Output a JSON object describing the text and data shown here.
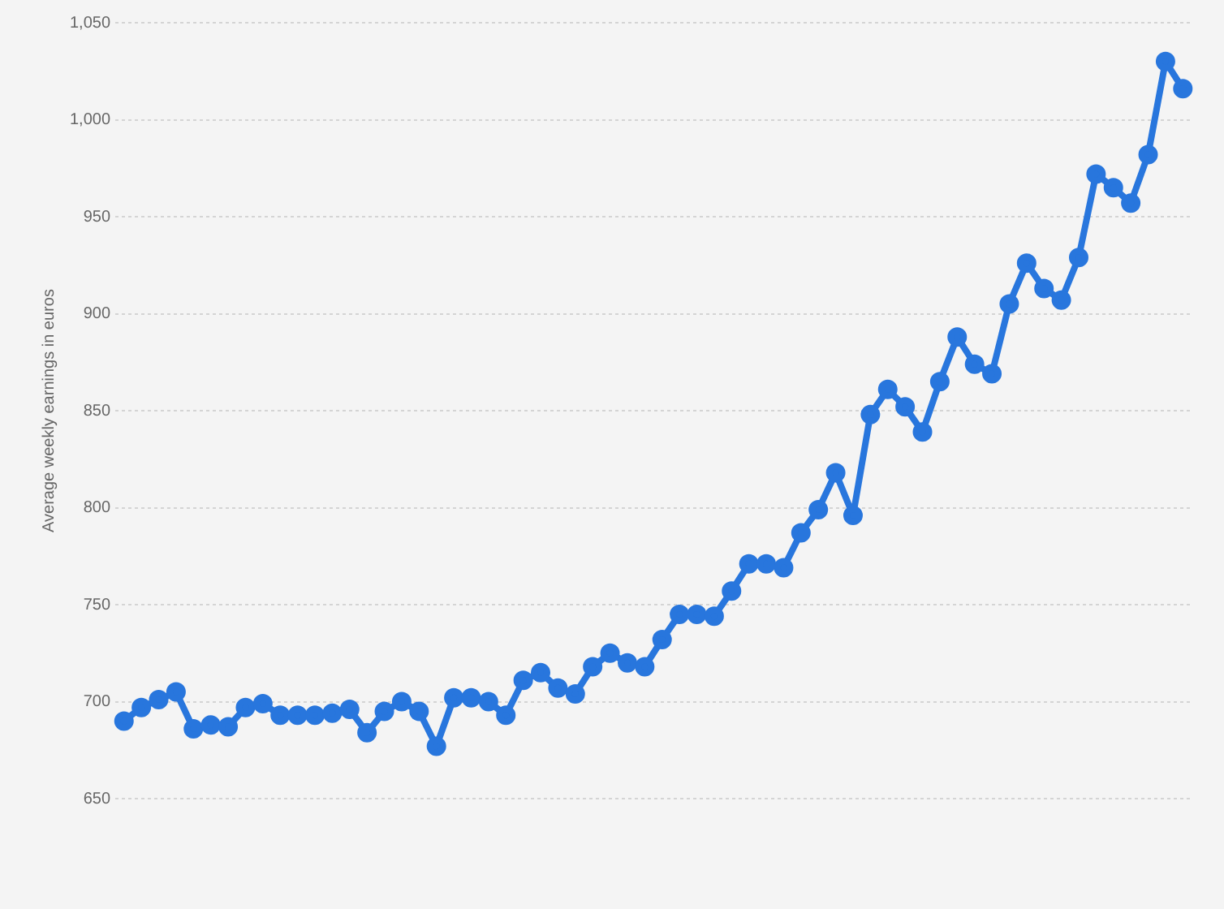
{
  "chart_data": {
    "type": "line",
    "ylabel": "Average weekly earnings in euros",
    "categories": [
      null,
      null,
      null,
      null,
      null,
      null,
      null,
      null,
      null,
      null,
      null,
      null,
      null,
      null,
      null,
      null,
      null,
      null,
      null,
      null,
      null,
      null,
      null,
      null,
      null,
      null,
      null,
      null,
      null,
      null,
      null,
      null,
      null,
      null,
      null,
      null,
      null,
      null,
      null,
      null,
      null,
      null,
      null,
      null,
      null,
      null,
      null,
      null,
      null,
      null,
      null,
      null,
      null,
      null,
      null,
      null,
      null,
      null,
      null,
      null,
      null,
      null
    ],
    "series": [
      {
        "color": "#2876dd",
        "values": [
          690,
          697,
          701,
          705,
          686,
          688,
          687,
          697,
          699,
          693,
          693,
          693,
          694,
          696,
          684,
          695,
          700,
          695,
          677,
          702,
          702,
          700,
          693,
          711,
          715,
          707,
          704,
          718,
          725,
          720,
          718,
          732,
          745,
          745,
          744,
          757,
          771,
          771,
          769,
          787,
          799,
          818,
          796,
          848,
          861,
          852,
          839,
          865,
          888,
          874,
          869,
          905,
          926,
          913,
          907,
          929,
          972,
          965,
          957,
          982,
          1030,
          1016
        ]
      }
    ],
    "ylim": [
      650,
      1050
    ],
    "yticks": [
      {
        "value": 650,
        "label": "650"
      },
      {
        "value": 700,
        "label": "700"
      },
      {
        "value": 750,
        "label": "750"
      },
      {
        "value": 800,
        "label": "800"
      },
      {
        "value": 850,
        "label": "850"
      },
      {
        "value": 900,
        "label": "900"
      },
      {
        "value": 950,
        "label": "950"
      },
      {
        "value": 1000,
        "label": "1,000"
      },
      {
        "value": 1050,
        "label": "1,050"
      }
    ],
    "grid": "y",
    "legend": false,
    "marker": "circle",
    "line_style": "solid"
  }
}
